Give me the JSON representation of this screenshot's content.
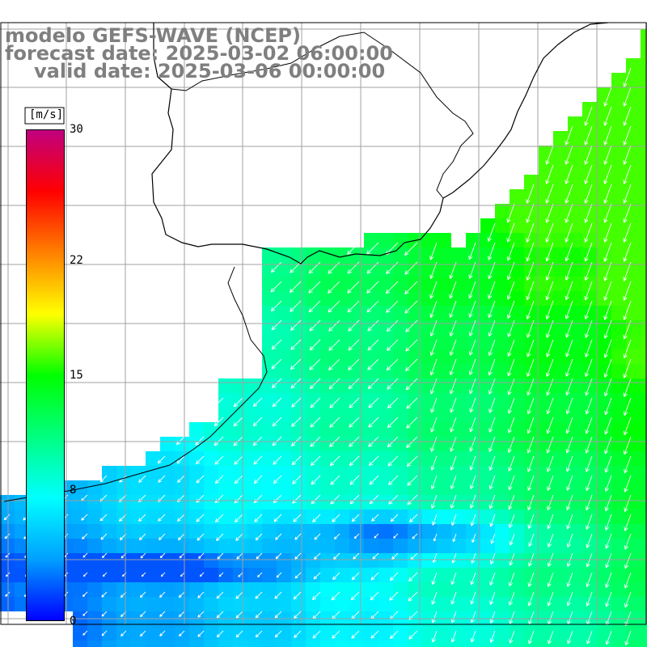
{
  "header": {
    "line1": "modelo GEFS-WAVE (NCEP)",
    "line2": "forecast date: 2025-03-02 06:00:00",
    "line3": "valid date: 2025-03-06 00:00:00"
  },
  "legend": {
    "unit": "[m/s]",
    "ticks": [
      "30",
      "22",
      "15",
      "8",
      "0"
    ],
    "tick_values": [
      30,
      22,
      15,
      8,
      0
    ],
    "range": [
      0,
      30
    ],
    "colors": [
      "#0000ff",
      "#00a0ff",
      "#00ffff",
      "#00ff80",
      "#00ff00",
      "#ffff00",
      "#ff8000",
      "#ff0000",
      "#c00080"
    ]
  },
  "colors": {
    "land": "#ffffff",
    "grid": "#a0a0a0",
    "coast": "#000000",
    "vectors": "#ffffff",
    "title": "#7f7f7f"
  }
}
